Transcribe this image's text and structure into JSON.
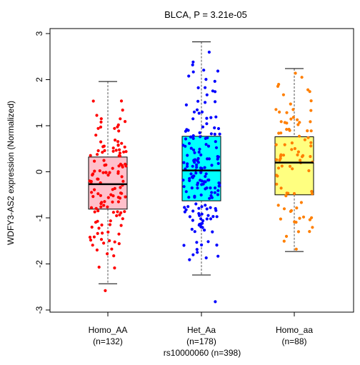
{
  "chart_data": {
    "type": "box",
    "title": "BLCA, P = 3.21e-05",
    "xlabel": "rs10000060 (n=398)",
    "ylabel": "WDFY3-AS2 expression (Normalized)",
    "ylim": [
      -3.1,
      3.05
    ],
    "yticks": [
      "3",
      "2",
      "1",
      "0",
      "-1",
      "-2",
      "-3"
    ],
    "groups": [
      {
        "label": "Homo_AA",
        "count_label": "(n=132)",
        "n": 132,
        "box_color": "#ffc0cb",
        "point_color": "#ff0000",
        "min": -2.43,
        "q1": -0.81,
        "median": -0.27,
        "q3": 0.32,
        "max": 1.96,
        "outliers": [
          -2.58
        ]
      },
      {
        "label": "Het_Aa",
        "count_label": "(n=178)",
        "n": 178,
        "box_color": "#00ffff",
        "point_color": "#0000ff",
        "min": -2.24,
        "q1": -0.63,
        "median": 0.03,
        "q3": 0.77,
        "max": 2.82,
        "outliers": [
          -2.82
        ]
      },
      {
        "label": "Homo_aa",
        "count_label": "(n=88)",
        "n": 88,
        "box_color": "#ffff80",
        "point_color": "#ff7f00",
        "min": -1.73,
        "q1": -0.5,
        "median": 0.2,
        "q3": 0.76,
        "max": 2.24,
        "outliers": []
      }
    ]
  }
}
